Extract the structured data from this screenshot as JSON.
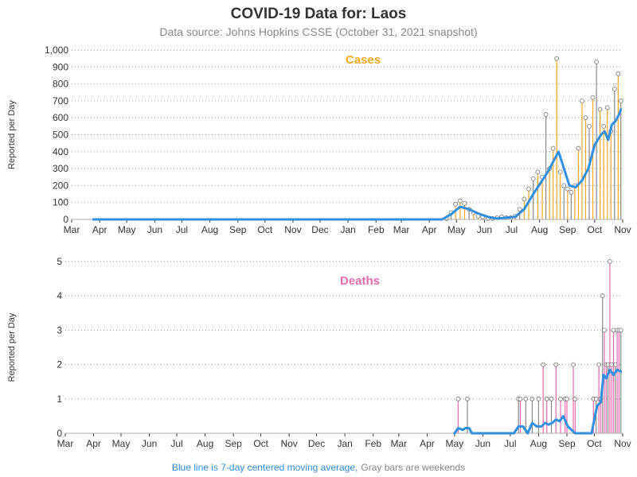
{
  "header": {
    "title": "COVID-19 Data for: Laos",
    "subtitle": "Data source: Johns Hopkins CSSE (October 31, 2021 snapshot)"
  },
  "footer": {
    "note_blue": "Blue line is 7-day centered moving average,",
    "note_gray": "Gray bars are weekends"
  },
  "colors": {
    "cases": "#f5a623",
    "deaths": "#e66db1",
    "average": "#2f8fe0",
    "weekend": "#888888",
    "grid": "#999999"
  },
  "chart_data": [
    {
      "type": "bar",
      "title": "Cases",
      "ylabel": "Reported per Day",
      "xlabel": "",
      "ylim": [
        0,
        1000
      ],
      "yticks": [
        0,
        100,
        200,
        300,
        400,
        500,
        600,
        700,
        800,
        900,
        1000
      ],
      "ytick_labels": [
        "0",
        "100",
        "200",
        "300",
        "400",
        "500",
        "600",
        "700",
        "800",
        "900",
        "1,000"
      ],
      "xticks": [
        "Mar",
        "Apr",
        "May",
        "Jun",
        "Jul",
        "Aug",
        "Sep",
        "Oct",
        "Nov",
        "Dec",
        "Jan",
        "Feb",
        "Mar",
        "Apr",
        "May",
        "Jun",
        "Jul",
        "Aug",
        "Sep",
        "Oct",
        "Nov"
      ],
      "x_range": [
        "2020-03-01",
        "2021-11-01"
      ],
      "grid": "horizontal dotted",
      "series": [
        {
          "kind": "daily_bars",
          "x": [
            "2021-04-20",
            "2021-04-25",
            "2021-04-30",
            "2021-05-05",
            "2021-05-10",
            "2021-05-15",
            "2021-05-20",
            "2021-05-25",
            "2021-05-30",
            "2021-06-05",
            "2021-06-10",
            "2021-06-15",
            "2021-06-20",
            "2021-06-25",
            "2021-06-30",
            "2021-07-05",
            "2021-07-10",
            "2021-07-15",
            "2021-07-20",
            "2021-07-25",
            "2021-07-30",
            "2021-08-04",
            "2021-08-08",
            "2021-08-12",
            "2021-08-16",
            "2021-08-20",
            "2021-08-24",
            "2021-08-28",
            "2021-09-01",
            "2021-09-05",
            "2021-09-09",
            "2021-09-13",
            "2021-09-17",
            "2021-09-21",
            "2021-09-25",
            "2021-09-29",
            "2021-10-03",
            "2021-10-07",
            "2021-10-11",
            "2021-10-15",
            "2021-10-19",
            "2021-10-23",
            "2021-10-27",
            "2021-10-30"
          ],
          "y": [
            5,
            40,
            90,
            110,
            95,
            60,
            40,
            20,
            15,
            5,
            5,
            10,
            15,
            10,
            10,
            20,
            60,
            120,
            180,
            240,
            280,
            250,
            620,
            300,
            420,
            950,
            280,
            200,
            180,
            160,
            200,
            420,
            700,
            600,
            550,
            720,
            930,
            650,
            550,
            660,
            520,
            770,
            860,
            700
          ]
        },
        {
          "kind": "moving_average",
          "x": [
            "2020-03-25",
            "2020-11-20",
            "2021-04-15",
            "2021-04-25",
            "2021-05-05",
            "2021-05-15",
            "2021-05-25",
            "2021-06-05",
            "2021-06-15",
            "2021-06-25",
            "2021-07-05",
            "2021-07-15",
            "2021-07-25",
            "2021-08-04",
            "2021-08-10",
            "2021-08-16",
            "2021-08-22",
            "2021-08-28",
            "2021-09-03",
            "2021-09-10",
            "2021-09-17",
            "2021-09-24",
            "2021-10-01",
            "2021-10-08",
            "2021-10-12",
            "2021-10-16",
            "2021-10-20",
            "2021-10-24",
            "2021-10-28",
            "2021-10-30"
          ],
          "y": [
            0,
            0,
            0,
            30,
            75,
            60,
            35,
            15,
            5,
            10,
            15,
            60,
            150,
            230,
            280,
            340,
            400,
            300,
            200,
            190,
            230,
            300,
            440,
            500,
            520,
            470,
            560,
            580,
            620,
            650
          ]
        }
      ]
    },
    {
      "type": "bar",
      "title": "Deaths",
      "ylabel": "Reported per Day",
      "xlabel": "",
      "ylim": [
        0,
        5
      ],
      "yticks": [
        0,
        1,
        2,
        3,
        4,
        5
      ],
      "ytick_labels": [
        "0",
        "1",
        "2",
        "3",
        "4",
        "5"
      ],
      "xticks": [
        "Mar",
        "Apr",
        "May",
        "Jun",
        "Jul",
        "Aug",
        "Sep",
        "Oct",
        "Nov",
        "Dec",
        "Jan",
        "Feb",
        "Mar",
        "Apr",
        "May",
        "Jun",
        "Jul",
        "Aug",
        "Sep",
        "Oct",
        "Nov"
      ],
      "x_range": [
        "2020-03-01",
        "2021-11-01"
      ],
      "grid": "horizontal dotted",
      "series": [
        {
          "kind": "daily_bars",
          "x": [
            "2021-05-05",
            "2021-05-15",
            "2021-07-10",
            "2021-07-12",
            "2021-07-18",
            "2021-07-25",
            "2021-08-01",
            "2021-08-06",
            "2021-08-10",
            "2021-08-15",
            "2021-08-20",
            "2021-08-25",
            "2021-08-30",
            "2021-09-01",
            "2021-09-08",
            "2021-09-10",
            "2021-09-30",
            "2021-10-03",
            "2021-10-06",
            "2021-10-08",
            "2021-10-10",
            "2021-10-12",
            "2021-10-14",
            "2021-10-16",
            "2021-10-18",
            "2021-10-20",
            "2021-10-22",
            "2021-10-24",
            "2021-10-26",
            "2021-10-28",
            "2021-10-30"
          ],
          "y": [
            1,
            1,
            1,
            1,
            1,
            1,
            1,
            2,
            1,
            1,
            2,
            1,
            1,
            1,
            2,
            1,
            1,
            1,
            2,
            1,
            4,
            3,
            2,
            2,
            5,
            2,
            3,
            2,
            3,
            3,
            3
          ]
        },
        {
          "kind": "moving_average",
          "x": [
            "2021-05-01",
            "2021-05-05",
            "2021-05-10",
            "2021-05-13",
            "2021-05-17",
            "2021-05-20",
            "2021-07-05",
            "2021-07-10",
            "2021-07-15",
            "2021-07-20",
            "2021-07-25",
            "2021-07-30",
            "2021-08-04",
            "2021-08-08",
            "2021-08-12",
            "2021-08-16",
            "2021-08-20",
            "2021-08-24",
            "2021-08-28",
            "2021-09-02",
            "2021-09-06",
            "2021-09-10",
            "2021-09-14",
            "2021-09-28",
            "2021-10-01",
            "2021-10-04",
            "2021-10-08",
            "2021-10-11",
            "2021-10-14",
            "2021-10-18",
            "2021-10-22",
            "2021-10-26",
            "2021-10-30"
          ],
          "y": [
            0,
            0.15,
            0.1,
            0.15,
            0.15,
            0,
            0,
            0.2,
            0.2,
            0,
            0.3,
            0.2,
            0.2,
            0.3,
            0.25,
            0.3,
            0.4,
            0.35,
            0.5,
            0.2,
            0.1,
            0,
            0,
            0,
            0.4,
            0.8,
            0.9,
            1.7,
            1.6,
            1.85,
            1.7,
            1.85,
            1.8
          ]
        }
      ]
    }
  ]
}
